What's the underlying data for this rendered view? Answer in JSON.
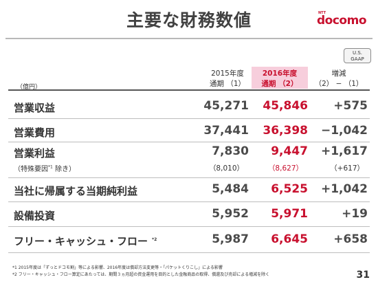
{
  "title": "主要な財務数値",
  "logo": {
    "brand_small": "NTT",
    "brand": "docomo"
  },
  "gaap_badge": {
    "line1": "U.S.",
    "line2": "GAAP"
  },
  "table": {
    "unit": "（億円）",
    "columns": [
      {
        "line1": "2015年度",
        "line2": "通期 （1）"
      },
      {
        "line1": "2016年度",
        "line2": "通期 （2）"
      },
      {
        "line1": "増減",
        "line2": "（2） − （1）"
      }
    ],
    "rows": [
      {
        "label": "営業収益",
        "v1": "45,271",
        "v2": "45,846",
        "v3": "+575"
      },
      {
        "label": "営業費用",
        "v1": "37,441",
        "v2": "36,398",
        "v3": "−1,042"
      },
      {
        "label": "営業利益",
        "v1": "7,830",
        "v2": "9,447",
        "v3": "+1,617"
      },
      {
        "label": "当社に帰属する当期純利益",
        "v1": "5,484",
        "v2": "6,525",
        "v3": "+1,042"
      },
      {
        "label": "設備投資",
        "v1": "5,952",
        "v2": "5,971",
        "v3": "+19"
      },
      {
        "label": "フリー・キャッシュ・フロー",
        "label_note": "*2",
        "v1": "5,987",
        "v2": "6,645",
        "v3": "+658"
      }
    ],
    "sub_row": {
      "label_pre": "（特殊要因",
      "label_note": "*1",
      "label_post": " 除き）",
      "v1": "（8,010）",
      "v2": "（8,627）",
      "v3": "（+617）"
    }
  },
  "footnotes": [
    "*1 2015年度は「ずっとドコモ割」等による影響、2016年度は償却方法変更等・「パケットくりこし」による影響",
    "*2 フリー・キャッシュ・フロー算定にあたっては、期間３ヵ月超の資金運用を目的とした金融商品の取得、償還及び売却による増減を除く"
  ],
  "page_number": "31"
}
